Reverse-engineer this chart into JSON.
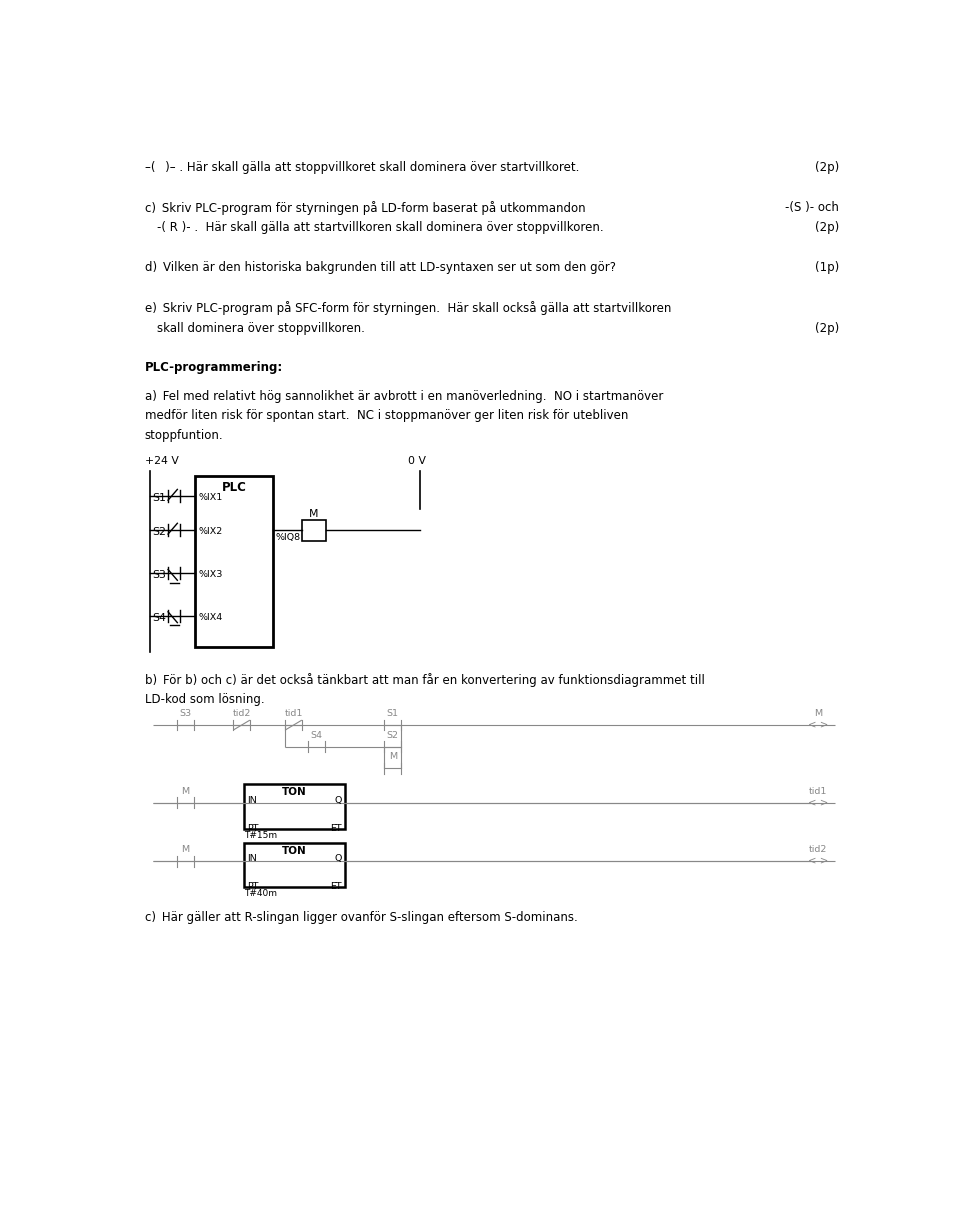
{
  "bg_color": "#ffffff",
  "text_color": "#000000",
  "gray_color": "#888888",
  "page_width": 9.6,
  "page_height": 12.23,
  "lm": 0.32,
  "rm": 0.32,
  "fs_main": 8.5,
  "fs_small": 7.8,
  "fs_diagram": 6.8,
  "line1": "–(  )– . Här skall gälla att stoppvillkoret skall dominera över startvillkoret.",
  "line1_right": "(2p)",
  "linec1": "c) Skriv PLC-program för styrningen på LD-form baserat på utkommandon",
  "linec1_right": "-(S )- och",
  "linec2": "-( R )- .  Här skall gälla att startvillkoren skall dominera över stoppvillkoren.",
  "linec2_right": "(2p)",
  "lined": "d) Vilken är den historiska bakgrunden till att LD-syntaxen ser ut som den gör?",
  "lined_right": "(1p)",
  "linee1": "e) Skriv PLC-program på SFC-form för styrningen.  Här skall också gälla att startvillkoren",
  "linee2": "skall dominera över stoppvillkoren.",
  "linee2_right": "(2p)",
  "plc_label": "PLC-programmering:",
  "linea1": "a) Fel med relativt hög sannolikhet är avbrott i en manöverledning.  NO i startmanöver",
  "linea2": "medför liten risk för spontan start.  NC i stoppmanöver ger liten risk för utebliven",
  "linea3": "stoppfuntion.",
  "lineb1": "b) För b) och c) är det också tänkbart att man får en konvertering av funktionsdiagrammet till",
  "lineb2": "LD-kod som lösning.",
  "linec_last": "c) Här gäller att R-slingan ligger ovanför S-slingan eftersom S-dominans."
}
